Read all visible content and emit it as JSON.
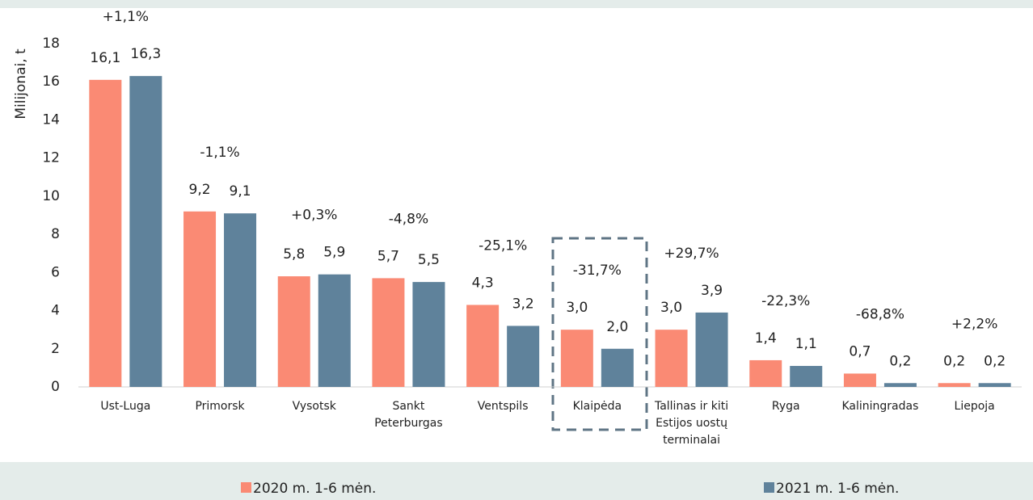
{
  "chart_data": {
    "type": "bar",
    "y_axis_label": "Milijonai, t",
    "categories": [
      "Ust-Luga",
      "Primorsk",
      "Vysotsk",
      "Sankt Peterburgas",
      "Ventspils",
      "Klaipėda",
      "Tallinas ir kiti Estijos uostų terminalai",
      "Ryga",
      "Kaliningradas",
      "Liepoja"
    ],
    "series": [
      {
        "name": "2020 m. 1-6 mėn.",
        "color": "#fa8a74",
        "values": [
          16.1,
          9.2,
          5.8,
          5.7,
          4.3,
          3.0,
          3.0,
          1.4,
          0.7,
          0.2
        ],
        "value_labels": [
          "16,1",
          "9,2",
          "5,8",
          "5,7",
          "4,3",
          "3,0",
          "3,0",
          "1,4",
          "0,7",
          "0,2"
        ]
      },
      {
        "name": "2021 m. 1-6 mėn.",
        "color": "#5f829b",
        "values": [
          16.3,
          9.1,
          5.9,
          5.5,
          3.2,
          2.0,
          3.9,
          1.1,
          0.2,
          0.2
        ],
        "value_labels": [
          "16,3",
          "9,1",
          "5,9",
          "5,5",
          "3,2",
          "2,0",
          "3,9",
          "1,1",
          "0,2",
          "0,2"
        ]
      }
    ],
    "changes": [
      "+1,1%",
      "-1,1%",
      "+0,3%",
      "-4,8%",
      "-25,1%",
      "-31,7%",
      "+29,7%",
      "-22,3%",
      "-68,8%",
      "+2,2%"
    ],
    "change_colors": {
      "up": "#2db34a",
      "down": "#e8161e"
    },
    "ylim": [
      0,
      18
    ],
    "yticks": [
      0,
      2,
      4,
      6,
      8,
      10,
      12,
      14,
      16,
      18
    ],
    "grid": false
  }
}
